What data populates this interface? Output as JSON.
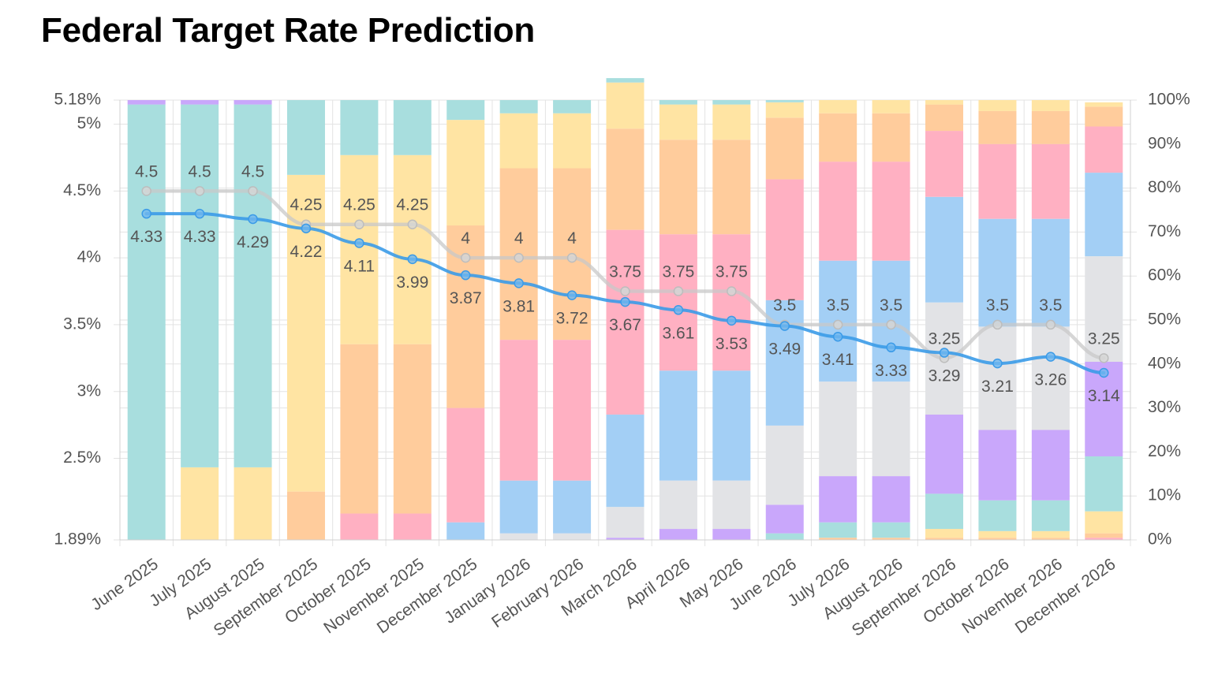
{
  "title": "Federal Target Rate Prediction",
  "chart_data": {
    "type": "bar",
    "categories": [
      "June 2025",
      "July 2025",
      "August 2025",
      "September 2025",
      "October 2025",
      "November 2025",
      "December 2025",
      "January 2026",
      "February 2026",
      "March 2026",
      "April 2026",
      "May 2026",
      "June 2026",
      "July 2026",
      "August 2026",
      "September 2026",
      "October 2026",
      "November 2026",
      "December 2026"
    ],
    "left_axis": {
      "ticks": [
        {
          "value": 5.18,
          "label": "5.18%"
        },
        {
          "value": 5.0,
          "label": "5%"
        },
        {
          "value": 4.5,
          "label": "4.5%"
        },
        {
          "value": 4.0,
          "label": "4%"
        },
        {
          "value": 3.5,
          "label": "3.5%"
        },
        {
          "value": 3.0,
          "label": "3%"
        },
        {
          "value": 2.5,
          "label": "2.5%"
        },
        {
          "value": 1.89,
          "label": "1.89%"
        }
      ],
      "ylim": [
        1.89,
        5.18
      ]
    },
    "right_axis": {
      "ticks": [
        "0%",
        "10%",
        "20%",
        "30%",
        "40%",
        "50%",
        "60%",
        "70%",
        "80%",
        "90%",
        "100%"
      ],
      "ylim": [
        0,
        100
      ]
    },
    "grid": true,
    "bucket_colors": [
      "#fdd9cf",
      "#f5d0e6",
      "#c9a7fb",
      "#a8dede",
      "#ffe4a3",
      "#ffcc9c",
      "#ffb0c2",
      "#a3cff5",
      "#e2e3e6"
    ],
    "stacks": [
      {
        "values": [
          {
            "c": 3,
            "p": 99.0
          },
          {
            "c": 2,
            "p": 1.0
          }
        ]
      },
      {
        "values": [
          {
            "c": 4,
            "p": 16.5
          },
          {
            "c": 3,
            "p": 82.5
          },
          {
            "c": 2,
            "p": 1.0
          }
        ]
      },
      {
        "values": [
          {
            "c": 4,
            "p": 16.5
          },
          {
            "c": 3,
            "p": 82.5
          },
          {
            "c": 2,
            "p": 1.0
          }
        ]
      },
      {
        "values": [
          {
            "c": 5,
            "p": 11.0
          },
          {
            "c": 4,
            "p": 72.0
          },
          {
            "c": 3,
            "p": 17.0
          }
        ]
      },
      {
        "values": [
          {
            "c": 6,
            "p": 6.0
          },
          {
            "c": 5,
            "p": 38.5
          },
          {
            "c": 4,
            "p": 43.0
          },
          {
            "c": 3,
            "p": 12.5
          }
        ]
      },
      {
        "values": [
          {
            "c": 6,
            "p": 6.0
          },
          {
            "c": 5,
            "p": 38.5
          },
          {
            "c": 4,
            "p": 43.0
          },
          {
            "c": 3,
            "p": 12.5
          }
        ]
      },
      {
        "values": [
          {
            "c": 7,
            "p": 4.0
          },
          {
            "c": 6,
            "p": 26.0
          },
          {
            "c": 5,
            "p": 41.5
          },
          {
            "c": 4,
            "p": 24.0
          },
          {
            "c": 3,
            "p": 4.5
          }
        ]
      },
      {
        "values": [
          {
            "c": 8,
            "p": 1.5
          },
          {
            "c": 7,
            "p": 12.0
          },
          {
            "c": 6,
            "p": 32.0
          },
          {
            "c": 5,
            "p": 39.0
          },
          {
            "c": 4,
            "p": 12.5
          },
          {
            "c": 3,
            "p": 3.0
          }
        ]
      },
      {
        "values": [
          {
            "c": 8,
            "p": 1.5
          },
          {
            "c": 7,
            "p": 12.0
          },
          {
            "c": 6,
            "p": 32.0
          },
          {
            "c": 5,
            "p": 39.0
          },
          {
            "c": 4,
            "p": 12.5
          },
          {
            "c": 3,
            "p": 3.0
          }
        ]
      },
      {
        "values": [
          {
            "c": 2,
            "p": 0.5
          },
          {
            "c": 8,
            "p": 7.0
          },
          {
            "c": 7,
            "p": 21.0
          },
          {
            "c": 6,
            "p": 42.0
          },
          {
            "c": 5,
            "p": 23.0
          },
          {
            "c": 4,
            "p": 10.5
          },
          {
            "c": 3,
            "p": 1.0
          }
        ]
      },
      {
        "values": [
          {
            "c": 2,
            "p": 2.5
          },
          {
            "c": 8,
            "p": 11.0
          },
          {
            "c": 7,
            "p": 25.0
          },
          {
            "c": 6,
            "p": 31.0
          },
          {
            "c": 5,
            "p": 21.5
          },
          {
            "c": 4,
            "p": 8.0
          },
          {
            "c": 3,
            "p": 1.0
          }
        ]
      },
      {
        "values": [
          {
            "c": 2,
            "p": 2.5
          },
          {
            "c": 8,
            "p": 11.0
          },
          {
            "c": 7,
            "p": 25.0
          },
          {
            "c": 6,
            "p": 31.0
          },
          {
            "c": 5,
            "p": 21.5
          },
          {
            "c": 4,
            "p": 8.0
          },
          {
            "c": 3,
            "p": 1.0
          }
        ]
      },
      {
        "values": [
          {
            "c": 3,
            "p": 1.5
          },
          {
            "c": 2,
            "p": 6.5
          },
          {
            "c": 8,
            "p": 18.0
          },
          {
            "c": 7,
            "p": 28.5
          },
          {
            "c": 6,
            "p": 27.5
          },
          {
            "c": 5,
            "p": 14.0
          },
          {
            "c": 4,
            "p": 3.5
          },
          {
            "c": 3,
            "p": 0.5
          }
        ]
      },
      {
        "values": [
          {
            "c": 5,
            "p": 0.5
          },
          {
            "c": 3,
            "p": 3.5
          },
          {
            "c": 2,
            "p": 10.5
          },
          {
            "c": 8,
            "p": 21.5
          },
          {
            "c": 7,
            "p": 27.5
          },
          {
            "c": 6,
            "p": 22.5
          },
          {
            "c": 5,
            "p": 11.0
          },
          {
            "c": 4,
            "p": 3.0
          }
        ]
      },
      {
        "values": [
          {
            "c": 5,
            "p": 0.5
          },
          {
            "c": 3,
            "p": 3.5
          },
          {
            "c": 2,
            "p": 10.5
          },
          {
            "c": 8,
            "p": 21.5
          },
          {
            "c": 7,
            "p": 27.5
          },
          {
            "c": 6,
            "p": 22.5
          },
          {
            "c": 5,
            "p": 11.0
          },
          {
            "c": 4,
            "p": 3.0
          }
        ]
      },
      {
        "values": [
          {
            "c": 5,
            "p": 0.5
          },
          {
            "c": 4,
            "p": 2.0
          },
          {
            "c": 3,
            "p": 8.0
          },
          {
            "c": 2,
            "p": 18.0
          },
          {
            "c": 8,
            "p": 25.5
          },
          {
            "c": 7,
            "p": 24.0
          },
          {
            "c": 6,
            "p": 15.0
          },
          {
            "c": 5,
            "p": 6.0
          },
          {
            "c": 4,
            "p": 1.0
          }
        ]
      },
      {
        "values": [
          {
            "c": 5,
            "p": 0.5
          },
          {
            "c": 4,
            "p": 1.5
          },
          {
            "c": 3,
            "p": 7.0
          },
          {
            "c": 2,
            "p": 16.0
          },
          {
            "c": 8,
            "p": 23.5
          },
          {
            "c": 7,
            "p": 24.5
          },
          {
            "c": 6,
            "p": 17.0
          },
          {
            "c": 5,
            "p": 7.5
          },
          {
            "c": 4,
            "p": 2.5
          }
        ]
      },
      {
        "values": [
          {
            "c": 5,
            "p": 0.5
          },
          {
            "c": 4,
            "p": 1.5
          },
          {
            "c": 3,
            "p": 7.0
          },
          {
            "c": 2,
            "p": 16.0
          },
          {
            "c": 8,
            "p": 23.5
          },
          {
            "c": 7,
            "p": 24.5
          },
          {
            "c": 6,
            "p": 17.0
          },
          {
            "c": 5,
            "p": 7.5
          },
          {
            "c": 4,
            "p": 2.5
          }
        ]
      },
      {
        "values": [
          {
            "c": 6,
            "p": 0.5
          },
          {
            "c": 5,
            "p": 1.0
          },
          {
            "c": 4,
            "p": 5.0
          },
          {
            "c": 3,
            "p": 12.5
          },
          {
            "c": 2,
            "p": 21.5
          },
          {
            "c": 8,
            "p": 24.0
          },
          {
            "c": 7,
            "p": 19.0
          },
          {
            "c": 6,
            "p": 10.5
          },
          {
            "c": 5,
            "p": 4.5
          },
          {
            "c": 4,
            "p": 1.0
          }
        ]
      }
    ],
    "series": [
      {
        "name": "",
        "color": "#3b9be8",
        "values": [
          4.33,
          4.33,
          4.29,
          4.22,
          4.11,
          3.99,
          3.87,
          3.81,
          3.72,
          3.67,
          3.61,
          3.53,
          3.49,
          3.41,
          3.33,
          3.29,
          3.21,
          3.26,
          3.14
        ],
        "labels": [
          "4.33",
          "4.33",
          "4.29",
          "4.22",
          "4.11",
          "3.99",
          "3.87",
          "3.81",
          "3.72",
          "3.67",
          "3.61",
          "3.53",
          "3.49",
          "3.41",
          "3.33",
          "3.29",
          "3.21",
          "3.26",
          "3.14"
        ]
      },
      {
        "name": "",
        "color": "#c8c8c8",
        "values": [
          4.5,
          4.5,
          4.5,
          4.25,
          4.25,
          4.25,
          4.0,
          4.0,
          4.0,
          3.75,
          3.75,
          3.75,
          3.5,
          3.5,
          3.5,
          3.25,
          3.5,
          3.5,
          3.25
        ],
        "labels": [
          "4.5",
          "4.5",
          "4.5",
          "4.25",
          "4.25",
          "4.25",
          "4",
          "4",
          "4",
          "3.75",
          "3.75",
          "3.75",
          "3.5",
          "3.5",
          "3.5",
          "3.25",
          "3.5",
          "3.5",
          "3.25"
        ]
      }
    ]
  }
}
